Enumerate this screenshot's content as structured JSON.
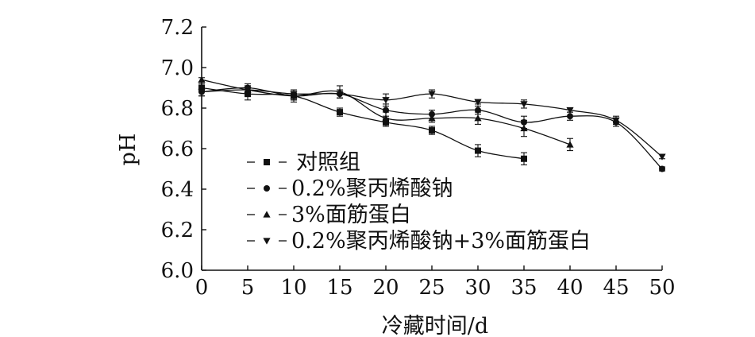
{
  "chart_data": {
    "type": "line",
    "title": "",
    "xlabel": "冷藏时间/d",
    "ylabel": "pH",
    "xlim": [
      0,
      50
    ],
    "ylim": [
      6.0,
      7.2
    ],
    "x_ticks": [
      "0",
      "5",
      "10",
      "15",
      "20",
      "25",
      "30",
      "35",
      "40",
      "45",
      "50"
    ],
    "y_ticks": [
      "6.0",
      "6.2",
      "6.4",
      "6.6",
      "6.8",
      "7.0",
      "7.2"
    ],
    "grid": false,
    "legend_position": "bottom-left",
    "series": [
      {
        "name": "对照组",
        "marker": "square",
        "x": [
          0,
          5,
          10,
          15,
          20,
          25,
          30,
          35
        ],
        "y": [
          6.9,
          6.87,
          6.86,
          6.78,
          6.73,
          6.69,
          6.59,
          6.55
        ],
        "err": [
          0.02,
          0.03,
          0.02,
          0.02,
          0.02,
          0.02,
          0.03,
          0.03
        ]
      },
      {
        "name": "0.2%聚丙烯酸钠",
        "marker": "circle",
        "x": [
          0,
          5,
          10,
          15,
          20,
          25,
          30,
          35,
          40,
          45,
          50
        ],
        "y": [
          6.88,
          6.9,
          6.86,
          6.87,
          6.79,
          6.77,
          6.79,
          6.73,
          6.76,
          6.73,
          6.5
        ],
        "err": [
          0.02,
          0.02,
          0.02,
          0.02,
          0.03,
          0.02,
          0.02,
          0.03,
          0.02,
          0.02,
          0.01
        ]
      },
      {
        "name": "3%面筋蛋白",
        "marker": "triangle-up",
        "x": [
          0,
          5,
          10,
          15,
          20,
          25,
          30,
          35,
          40
        ],
        "y": [
          6.94,
          6.89,
          6.86,
          6.88,
          6.75,
          6.75,
          6.75,
          6.7,
          6.62
        ],
        "err": [
          0.01,
          0.02,
          0.03,
          0.03,
          0.03,
          0.02,
          0.03,
          0.04,
          0.03
        ]
      },
      {
        "name": "0.2%聚丙烯酸钠+3%面筋蛋白",
        "marker": "triangle-down",
        "x": [
          0,
          5,
          10,
          15,
          20,
          25,
          30,
          35,
          40,
          45,
          50
        ],
        "y": [
          6.88,
          6.89,
          6.87,
          6.87,
          6.84,
          6.87,
          6.83,
          6.82,
          6.79,
          6.74,
          6.56
        ],
        "err": [
          0.02,
          0.02,
          0.02,
          0.02,
          0.03,
          0.02,
          0.01,
          0.02,
          0.01,
          0.02,
          0.01
        ]
      }
    ]
  }
}
